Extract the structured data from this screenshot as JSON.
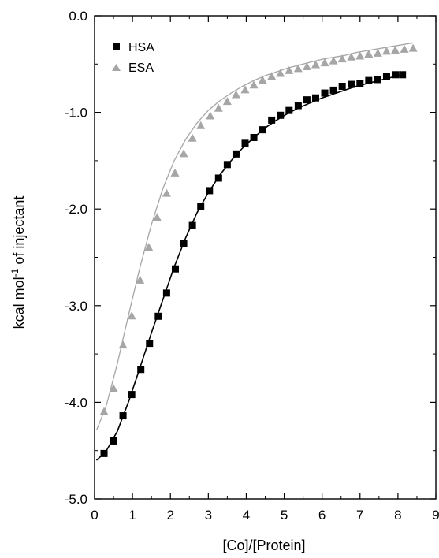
{
  "chart_data": {
    "type": "scatter",
    "xlabel": "[Co]/[Protein]",
    "ylabel": "kcal mol",
    "ylabel_superscript": "-1",
    "ylabel_suffix": " of injectant",
    "xlim": [
      0,
      9
    ],
    "ylim": [
      -5.0,
      0.0
    ],
    "x_ticks": [
      0,
      1,
      2,
      3,
      4,
      5,
      6,
      7,
      8,
      9
    ],
    "y_ticks": [
      0.0,
      -1.0,
      -2.0,
      -3.0,
      -4.0,
      -5.0
    ],
    "x_tick_labels": [
      "0",
      "1",
      "2",
      "3",
      "4",
      "5",
      "6",
      "7",
      "8",
      "9"
    ],
    "y_tick_labels": [
      "0.0",
      "-1.0",
      "-2.0",
      "-3.0",
      "-4.0",
      "-5.0"
    ],
    "legend_position": "top-left",
    "grid": false,
    "series": [
      {
        "name": "HSA",
        "marker": "square",
        "color": "#000000",
        "x": [
          0.25,
          0.5,
          0.75,
          0.98,
          1.22,
          1.45,
          1.68,
          1.9,
          2.13,
          2.35,
          2.58,
          2.8,
          3.03,
          3.27,
          3.5,
          3.73,
          3.97,
          4.2,
          4.43,
          4.67,
          4.9,
          5.13,
          5.37,
          5.6,
          5.83,
          6.07,
          6.3,
          6.53,
          6.77,
          7.0,
          7.23,
          7.47,
          7.7,
          7.93,
          8.12
        ],
        "y": [
          -4.53,
          -4.4,
          -4.14,
          -3.92,
          -3.66,
          -3.39,
          -3.11,
          -2.87,
          -2.62,
          -2.36,
          -2.17,
          -1.97,
          -1.81,
          -1.68,
          -1.54,
          -1.43,
          -1.32,
          -1.26,
          -1.18,
          -1.08,
          -1.03,
          -0.98,
          -0.93,
          -0.87,
          -0.85,
          -0.8,
          -0.77,
          -0.73,
          -0.71,
          -0.7,
          -0.67,
          -0.66,
          -0.63,
          -0.61,
          -0.61
        ]
      },
      {
        "name": "ESA",
        "marker": "triangle",
        "color": "#a6a6a6",
        "x": [
          0.25,
          0.5,
          0.75,
          0.98,
          1.2,
          1.43,
          1.65,
          1.9,
          2.12,
          2.35,
          2.58,
          2.8,
          3.05,
          3.27,
          3.5,
          3.73,
          3.97,
          4.2,
          4.43,
          4.67,
          4.9,
          5.13,
          5.37,
          5.6,
          5.83,
          6.07,
          6.3,
          6.53,
          6.77,
          7.0,
          7.23,
          7.47,
          7.7,
          7.93,
          8.17,
          8.4
        ],
        "y": [
          -4.1,
          -3.86,
          -3.41,
          -3.11,
          -2.74,
          -2.4,
          -2.09,
          -1.84,
          -1.63,
          -1.43,
          -1.27,
          -1.14,
          -1.04,
          -0.96,
          -0.89,
          -0.82,
          -0.77,
          -0.72,
          -0.67,
          -0.63,
          -0.6,
          -0.57,
          -0.55,
          -0.53,
          -0.51,
          -0.49,
          -0.47,
          -0.45,
          -0.43,
          -0.42,
          -0.4,
          -0.39,
          -0.37,
          -0.36,
          -0.35,
          -0.34
        ]
      }
    ],
    "fits": [
      {
        "for": "HSA",
        "color": "#000000",
        "x": [
          0.05,
          0.3,
          0.6,
          0.9,
          1.2,
          1.5,
          1.8,
          2.1,
          2.4,
          2.7,
          3.0,
          3.3,
          3.6,
          3.9,
          4.2,
          4.5,
          4.8,
          5.1,
          5.4,
          5.7,
          6.0,
          6.3,
          6.6,
          6.9,
          7.2,
          7.5,
          7.8,
          8.1
        ],
        "y": [
          -4.6,
          -4.51,
          -4.3,
          -3.99,
          -3.64,
          -3.28,
          -2.94,
          -2.6,
          -2.3,
          -2.04,
          -1.83,
          -1.65,
          -1.5,
          -1.37,
          -1.26,
          -1.16,
          -1.08,
          -1.01,
          -0.95,
          -0.9,
          -0.85,
          -0.81,
          -0.77,
          -0.73,
          -0.7,
          -0.67,
          -0.64,
          -0.61
        ]
      },
      {
        "for": "ESA",
        "color": "#a6a6a6",
        "x": [
          0.05,
          0.3,
          0.6,
          0.9,
          1.2,
          1.5,
          1.8,
          2.1,
          2.4,
          2.7,
          3.0,
          3.3,
          3.6,
          3.9,
          4.2,
          4.5,
          4.8,
          5.1,
          5.4,
          5.7,
          6.0,
          6.3,
          6.6,
          6.9,
          7.2,
          7.5,
          7.8,
          8.1,
          8.4
        ],
        "y": [
          -4.29,
          -4.05,
          -3.6,
          -3.09,
          -2.6,
          -2.16,
          -1.79,
          -1.5,
          -1.28,
          -1.11,
          -0.98,
          -0.88,
          -0.8,
          -0.73,
          -0.67,
          -0.62,
          -0.58,
          -0.54,
          -0.51,
          -0.48,
          -0.45,
          -0.43,
          -0.41,
          -0.38,
          -0.36,
          -0.34,
          -0.32,
          -0.3,
          -0.28
        ]
      }
    ]
  }
}
